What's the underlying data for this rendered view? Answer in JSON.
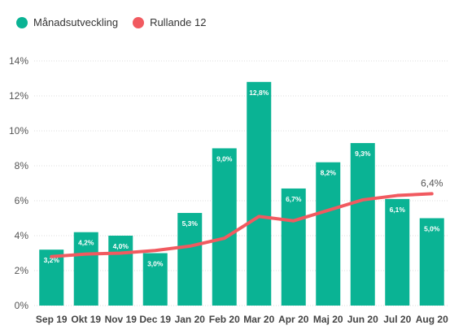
{
  "chart_data": {
    "type": "bar",
    "categories": [
      "Sep 19",
      "Okt 19",
      "Nov 19",
      "Dec 19",
      "Jan 20",
      "Feb 20",
      "Mar 20",
      "Apr 20",
      "Maj 20",
      "Jun 20",
      "Jul 20",
      "Aug 20"
    ],
    "series": [
      {
        "name": "Månadsutveckling",
        "type": "bar",
        "color": "#0ab394",
        "values": [
          3.2,
          4.2,
          4.0,
          3.0,
          5.3,
          9.0,
          12.8,
          6.7,
          8.2,
          9.3,
          6.1,
          5.0
        ],
        "labels": [
          "3,2%",
          "4,2%",
          "4,0%",
          "3,0%",
          "5,3%",
          "9,0%",
          "12,8%",
          "6,7%",
          "8,2%",
          "9,3%",
          "6,1%",
          "5,0%"
        ]
      },
      {
        "name": "Rullande 12",
        "type": "line",
        "color": "#f15a60",
        "values": [
          2.8,
          2.95,
          3.0,
          3.15,
          3.4,
          3.85,
          5.1,
          4.85,
          5.45,
          6.05,
          6.3,
          6.4
        ],
        "end_label": "6,4%"
      }
    ],
    "ylim": [
      0,
      14
    ],
    "yticks": [
      0,
      2,
      4,
      6,
      8,
      10,
      12,
      14
    ],
    "ytick_labels": [
      "0%",
      "2%",
      "4%",
      "6%",
      "8%",
      "10%",
      "12%",
      "14%"
    ],
    "grid": true,
    "legend": "top-left"
  }
}
